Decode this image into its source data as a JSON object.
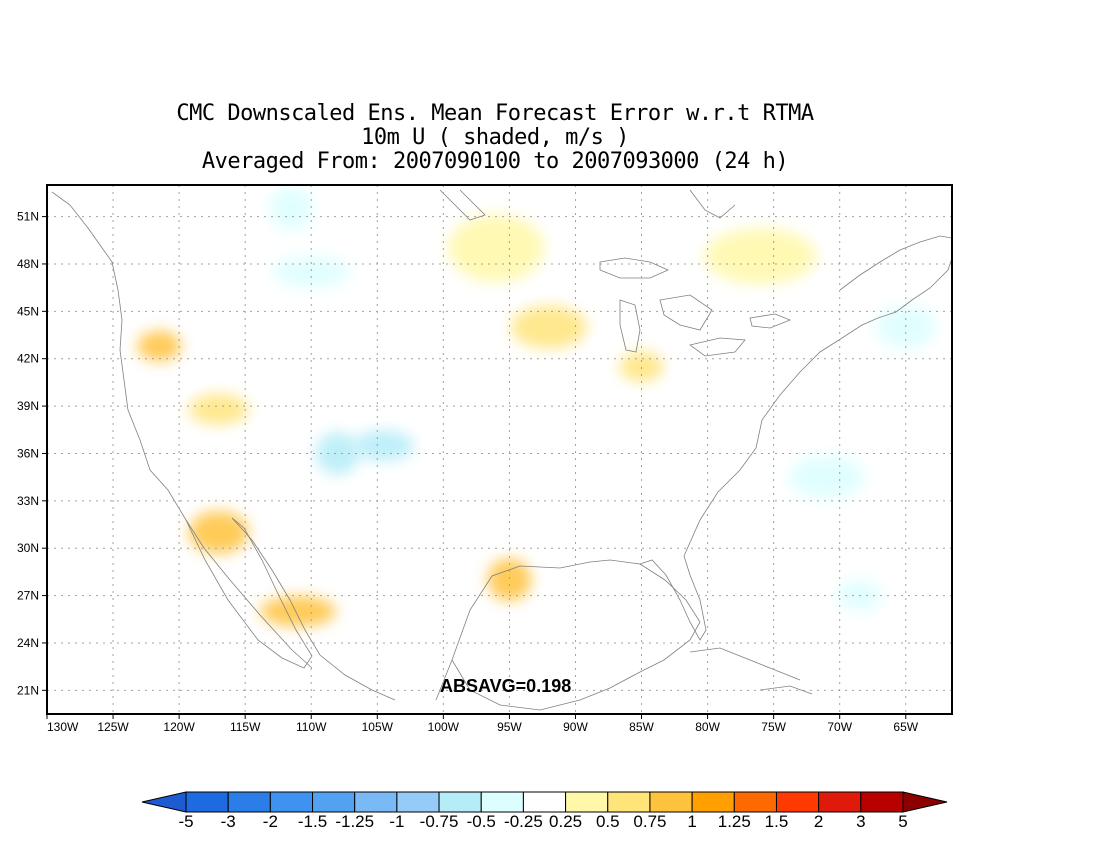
{
  "title": {
    "line1": "CMC Downscaled Ens. Mean Forecast Error w.r.t RTMA",
    "line2": "10m U ( shaded, m/s )",
    "line3": "Averaged From: 2007090100 to 2007093000 (24 h)"
  },
  "stat": {
    "absavg": "ABSAVG=0.198"
  },
  "map": {
    "lat_range": [
      19.5,
      53.0
    ],
    "lon_range": [
      -130,
      -61.5
    ],
    "lat_ticks": [
      "51N",
      "48N",
      "45N",
      "42N",
      "39N",
      "36N",
      "33N",
      "30N",
      "27N",
      "24N",
      "21N"
    ],
    "lat_values": [
      51,
      48,
      45,
      42,
      39,
      36,
      33,
      30,
      27,
      24,
      21
    ],
    "lon_ticks": [
      "130W",
      "125W",
      "120W",
      "115W",
      "110W",
      "105W",
      "100W",
      "95W",
      "90W",
      "85W",
      "80W",
      "75W",
      "70W",
      "65W"
    ],
    "lon_values": [
      -130,
      -125,
      -120,
      -115,
      -110,
      -105,
      -100,
      -95,
      -90,
      -85,
      -80,
      -75,
      -70,
      -65
    ],
    "grid": true,
    "shading": [
      {
        "lon": -121.5,
        "lat": 42.8,
        "value": 0.75
      },
      {
        "lon": -117.0,
        "lat": 31.0,
        "value": 0.75
      },
      {
        "lon": -111.0,
        "lat": 26.0,
        "value": 0.75
      },
      {
        "lon": -95.0,
        "lat": 28.0,
        "value": 0.75
      },
      {
        "lon": -117.0,
        "lat": 38.8,
        "value": 0.5
      },
      {
        "lon": -92.0,
        "lat": 44.0,
        "value": 0.5
      },
      {
        "lon": -85.0,
        "lat": 41.5,
        "value": 0.5
      },
      {
        "lon": -96.0,
        "lat": 49.0,
        "value": 0.25
      },
      {
        "lon": -76.0,
        "lat": 48.5,
        "value": 0.25
      },
      {
        "lon": -108.0,
        "lat": 36.0,
        "value": -0.75
      },
      {
        "lon": -104.5,
        "lat": 36.5,
        "value": -0.75
      },
      {
        "lon": -71.0,
        "lat": 34.5,
        "value": -0.5
      },
      {
        "lon": -68.5,
        "lat": 27.0,
        "value": -0.5
      },
      {
        "lon": -65.0,
        "lat": 44.0,
        "value": -0.5
      },
      {
        "lon": -110.0,
        "lat": 47.5,
        "value": -0.5
      },
      {
        "lon": -111.5,
        "lat": 51.5,
        "value": -0.5
      }
    ]
  },
  "colorbar": {
    "levels": [
      "-5",
      "-3",
      "-2",
      "-1.5",
      "-1.25",
      "-1",
      "-0.75",
      "-0.5",
      "-0.25",
      "0.25",
      "0.5",
      "0.75",
      "1",
      "1.25",
      "1.5",
      "2",
      "3",
      "5"
    ],
    "colors": [
      "#1e6ae0",
      "#2b7ee8",
      "#3e92f0",
      "#52a2f2",
      "#78b9f6",
      "#96caf8",
      "#b4ecf8",
      "#dcfefe",
      "#ffffff",
      "#fff8a8",
      "#ffe47a",
      "#ffc23c",
      "#ffa000",
      "#ff6a00",
      "#ff3a00",
      "#e01a0a",
      "#b80000"
    ],
    "under_color": "#1e5ad0",
    "over_color": "#8c0000"
  }
}
